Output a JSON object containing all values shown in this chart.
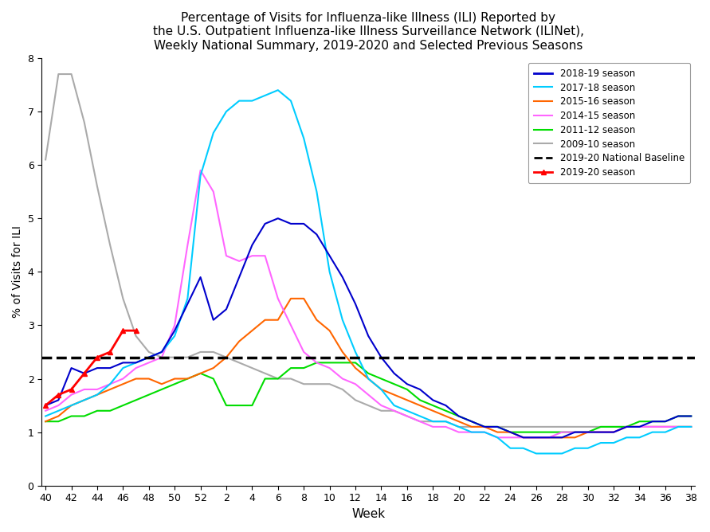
{
  "title": "Percentage of Visits for Influenza-like Illness (ILI) Reported by\nthe U.S. Outpatient Influenza-like Illness Surveillance Network (ILINet),\nWeekly National Summary, 2019-2020 and Selected Previous Seasons",
  "xlabel": "Week",
  "ylabel": "% of Visits for ILI",
  "ylim": [
    0,
    8
  ],
  "yticks": [
    0,
    1,
    2,
    3,
    4,
    5,
    6,
    7,
    8
  ],
  "baseline": 2.4,
  "week_label_nums": [
    40,
    42,
    44,
    46,
    48,
    50,
    52,
    2,
    4,
    6,
    8,
    10,
    12,
    14,
    16,
    18,
    20,
    22,
    24,
    26,
    28,
    30,
    32,
    34,
    36,
    38
  ],
  "season_2018_19": {
    "color": "#0000CC",
    "label": "2018-19 season",
    "weeks": [
      40,
      41,
      42,
      43,
      44,
      45,
      46,
      47,
      48,
      49,
      50,
      51,
      52,
      1,
      2,
      3,
      4,
      5,
      6,
      7,
      8,
      9,
      10,
      11,
      12,
      13,
      14,
      15,
      16,
      17,
      18,
      19,
      20,
      21,
      22,
      23,
      24,
      25,
      26,
      27,
      28,
      29,
      30,
      31,
      32,
      33,
      34,
      35,
      36,
      37,
      38
    ],
    "y": [
      1.5,
      1.6,
      2.2,
      2.1,
      2.2,
      2.2,
      2.3,
      2.3,
      2.4,
      2.5,
      2.9,
      3.4,
      3.9,
      3.1,
      3.3,
      3.9,
      4.5,
      4.9,
      5.0,
      4.9,
      4.9,
      4.7,
      4.3,
      3.9,
      3.4,
      2.8,
      2.4,
      2.1,
      1.9,
      1.8,
      1.6,
      1.5,
      1.3,
      1.2,
      1.1,
      1.1,
      1.0,
      0.9,
      0.9,
      0.9,
      0.9,
      1.0,
      1.0,
      1.0,
      1.0,
      1.1,
      1.1,
      1.2,
      1.2,
      1.3,
      1.3
    ]
  },
  "season_2017_18": {
    "color": "#00CCFF",
    "label": "2017-18 season",
    "weeks": [
      40,
      41,
      42,
      43,
      44,
      45,
      46,
      47,
      48,
      49,
      50,
      51,
      52,
      1,
      2,
      3,
      4,
      5,
      6,
      7,
      8,
      9,
      10,
      11,
      12,
      13,
      14,
      15,
      16,
      17,
      18,
      19,
      20,
      21,
      22,
      23,
      24,
      25,
      26,
      27,
      28,
      29,
      30,
      31,
      32,
      33,
      34,
      35,
      36,
      37,
      38
    ],
    "y": [
      1.3,
      1.4,
      1.5,
      1.6,
      1.7,
      1.9,
      2.2,
      2.3,
      2.4,
      2.5,
      2.8,
      3.5,
      5.8,
      6.6,
      7.0,
      7.2,
      7.2,
      7.3,
      7.4,
      7.2,
      6.5,
      5.5,
      4.0,
      3.1,
      2.5,
      2.0,
      1.8,
      1.5,
      1.4,
      1.3,
      1.2,
      1.2,
      1.1,
      1.0,
      1.0,
      0.9,
      0.7,
      0.7,
      0.6,
      0.6,
      0.6,
      0.7,
      0.7,
      0.8,
      0.8,
      0.9,
      0.9,
      1.0,
      1.0,
      1.1,
      1.1
    ]
  },
  "season_2015_16": {
    "color": "#FF6600",
    "label": "2015-16 season",
    "weeks": [
      40,
      41,
      42,
      43,
      44,
      45,
      46,
      47,
      48,
      49,
      50,
      51,
      52,
      1,
      2,
      3,
      4,
      5,
      6,
      7,
      8,
      9,
      10,
      11,
      12,
      13,
      14,
      15,
      16,
      17,
      18,
      19,
      20,
      21,
      22,
      23,
      24,
      25,
      26,
      27,
      28,
      29,
      30,
      31,
      32,
      33,
      34,
      35,
      36,
      37,
      38
    ],
    "y": [
      1.2,
      1.3,
      1.5,
      1.6,
      1.7,
      1.8,
      1.9,
      2.0,
      2.0,
      1.9,
      2.0,
      2.0,
      2.1,
      2.2,
      2.4,
      2.7,
      2.9,
      3.1,
      3.1,
      3.5,
      3.5,
      3.1,
      2.9,
      2.5,
      2.2,
      2.0,
      1.8,
      1.7,
      1.6,
      1.5,
      1.4,
      1.3,
      1.2,
      1.1,
      1.1,
      1.0,
      1.0,
      0.9,
      0.9,
      0.9,
      0.9,
      0.9,
      1.0,
      1.0,
      1.0,
      1.1,
      1.1,
      1.1,
      1.1,
      1.1,
      1.1
    ]
  },
  "season_2014_15": {
    "color": "#FF66FF",
    "label": "2014-15 season",
    "weeks": [
      40,
      41,
      42,
      43,
      44,
      45,
      46,
      47,
      48,
      49,
      50,
      51,
      52,
      1,
      2,
      3,
      4,
      5,
      6,
      7,
      8,
      9,
      10,
      11,
      12,
      13,
      14,
      15,
      16,
      17,
      18,
      19,
      20,
      21,
      22,
      23,
      24,
      25,
      26,
      27,
      28,
      29,
      30,
      31,
      32,
      33,
      34,
      35,
      36,
      37,
      38
    ],
    "y": [
      1.4,
      1.5,
      1.7,
      1.8,
      1.8,
      1.9,
      2.0,
      2.2,
      2.3,
      2.4,
      3.0,
      4.5,
      5.9,
      5.5,
      4.3,
      4.2,
      4.3,
      4.3,
      3.5,
      3.0,
      2.5,
      2.3,
      2.2,
      2.0,
      1.9,
      1.7,
      1.5,
      1.4,
      1.3,
      1.2,
      1.1,
      1.1,
      1.0,
      1.0,
      1.0,
      0.9,
      0.9,
      0.9,
      0.9,
      0.9,
      1.0,
      1.0,
      1.0,
      1.0,
      1.0,
      1.1,
      1.1,
      1.1,
      1.1,
      1.1,
      1.1
    ]
  },
  "season_2011_12": {
    "color": "#00DD00",
    "label": "2011-12 season",
    "weeks": [
      40,
      41,
      42,
      43,
      44,
      45,
      46,
      47,
      48,
      49,
      50,
      51,
      52,
      1,
      2,
      3,
      4,
      5,
      6,
      7,
      8,
      9,
      10,
      11,
      12,
      13,
      14,
      15,
      16,
      17,
      18,
      19,
      20,
      21,
      22,
      23,
      24,
      25,
      26,
      27,
      28,
      29,
      30,
      31,
      32,
      33,
      34,
      35,
      36,
      37,
      38
    ],
    "y": [
      1.2,
      1.2,
      1.3,
      1.3,
      1.4,
      1.4,
      1.5,
      1.6,
      1.7,
      1.8,
      1.9,
      2.0,
      2.1,
      2.0,
      1.5,
      1.5,
      1.5,
      2.0,
      2.0,
      2.2,
      2.2,
      2.3,
      2.3,
      2.3,
      2.3,
      2.1,
      2.0,
      1.9,
      1.8,
      1.6,
      1.5,
      1.4,
      1.3,
      1.2,
      1.1,
      1.1,
      1.0,
      1.0,
      1.0,
      1.0,
      1.0,
      1.0,
      1.0,
      1.1,
      1.1,
      1.1,
      1.2,
      1.2,
      1.2,
      1.3,
      1.3
    ]
  },
  "season_2009_10": {
    "color": "#AAAAAA",
    "label": "2009-10 season",
    "weeks": [
      40,
      41,
      42,
      43,
      44,
      45,
      46,
      47,
      48,
      49,
      50,
      51,
      52,
      1,
      2,
      3,
      4,
      5,
      6,
      7,
      8,
      9,
      10,
      11,
      12,
      13,
      14,
      15,
      16,
      17,
      18,
      19,
      20,
      21,
      22,
      23,
      24,
      25,
      26,
      27,
      28,
      29,
      30,
      31,
      32,
      33,
      34,
      35,
      36,
      37,
      38
    ],
    "y": [
      6.1,
      7.7,
      7.7,
      6.8,
      5.6,
      4.5,
      3.5,
      2.8,
      2.5,
      2.4,
      2.4,
      2.4,
      2.5,
      2.5,
      2.4,
      2.3,
      2.2,
      2.1,
      2.0,
      2.0,
      1.9,
      1.9,
      1.9,
      1.8,
      1.6,
      1.5,
      1.4,
      1.4,
      1.3,
      1.2,
      1.2,
      1.2,
      1.1,
      1.1,
      1.1,
      1.1,
      1.1,
      1.1,
      1.1,
      1.1,
      1.1,
      1.1,
      1.1,
      1.1,
      1.1,
      1.1,
      1.1,
      1.1,
      1.1,
      1.1,
      1.1
    ]
  },
  "season_2019_20": {
    "color": "#FF0000",
    "label": "2019-20 season",
    "weeks": [
      40,
      41,
      42,
      43,
      44,
      45,
      46,
      47
    ],
    "y": [
      1.5,
      1.7,
      1.8,
      2.1,
      2.4,
      2.5,
      2.9,
      2.9
    ]
  }
}
